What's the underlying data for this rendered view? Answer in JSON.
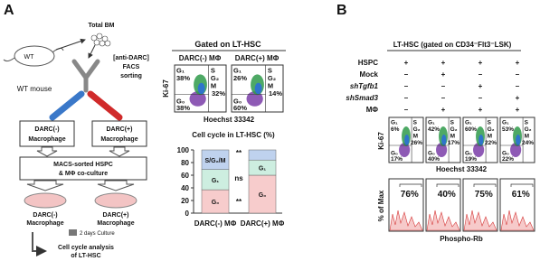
{
  "gate_labels": {
    "g1": "G₁",
    "s": "S",
    "g2": "G₂",
    "m": "M",
    "g0": "G₀"
  },
  "panel_a": {
    "label": "A",
    "mouse": "WT",
    "mouse_caption": "WT mouse",
    "source": "Total BM",
    "sorting": [
      "[anti-DARC]",
      "FACS",
      "sorting"
    ],
    "sorted": [
      {
        "line1": "DARC(-)",
        "line2": "Macrophage"
      },
      {
        "line1": "DARC(+)",
        "line2": "Macrophage"
      }
    ],
    "coculture": [
      "MACS-sorted HSPC",
      "& MΦ co-culture"
    ],
    "dishes": [
      {
        "line1": "DARC(-)",
        "line2": "Macrophage"
      },
      {
        "line1": "DARC(+)",
        "line2": "Macrophage"
      }
    ],
    "culture_time": "2 days Culture",
    "analysis": [
      "Cell cycle analysis",
      "of LT-HSC"
    ],
    "flow": {
      "title": "Gated on LT-HSC",
      "y_label": "Ki-67",
      "x_label": "Hoechst 33342",
      "plots": [
        {
          "title": "DARC(-) MΦ",
          "g1": "38%",
          "sg2m": "32%",
          "g0": "38%"
        },
        {
          "title": "DARC(+) MΦ",
          "g1": "26%",
          "sg2m": "14%",
          "g0": "60%"
        }
      ]
    }
  },
  "chart_data": {
    "type": "bar",
    "stacked": true,
    "title": "Cell cycle in LT-HSC (%)",
    "categories": [
      "DARC(-) MΦ",
      "DARC(+) MΦ"
    ],
    "series": [
      {
        "name": "G₀",
        "color": "#f7cccc",
        "values": [
          37,
          60
        ]
      },
      {
        "name": "G₁",
        "color": "#cdeee0",
        "values": [
          32,
          24
        ]
      },
      {
        "name": "S/G₂/M",
        "color": "#bfd2ee",
        "values": [
          31,
          16
        ]
      }
    ],
    "ylim": [
      0,
      100
    ],
    "yticks": [
      0,
      20,
      40,
      60,
      80,
      100
    ],
    "annotations": [
      "**",
      "ns",
      "**"
    ]
  },
  "panel_b": {
    "label": "B",
    "title": "LT-HSC (gated on CD34⁻Flt3⁻LSK)",
    "conditions": [
      {
        "name": "HSPC",
        "marks": [
          "+",
          "+",
          "+",
          "+"
        ]
      },
      {
        "name": "Mock",
        "marks": [
          "–",
          "+",
          "–",
          "–"
        ]
      },
      {
        "name": "shTgfb1",
        "marks": [
          "–",
          "–",
          "+",
          "–"
        ]
      },
      {
        "name": "shSmad3",
        "marks": [
          "–",
          "–",
          "–",
          "+"
        ]
      },
      {
        "name": "MΦ",
        "marks": [
          "–",
          "+",
          "+",
          "+"
        ]
      }
    ],
    "flow": {
      "y_label": "Ki-67",
      "x_label": "Hoechst 33342",
      "plots": [
        {
          "g1": "6%",
          "sg2m": "26%",
          "g0": "17%"
        },
        {
          "g1": "42%",
          "sg2m": "17%",
          "g0": "40%"
        },
        {
          "g1": "60%",
          "sg2m": "22%",
          "g0": "19%"
        },
        {
          "g1": "53%",
          "sg2m": "24%",
          "g0": "22%"
        }
      ]
    },
    "histogram": {
      "y_label": "% of Max",
      "x_label": "Phospho-Rb",
      "values": [
        "76%",
        "40%",
        "75%",
        "61%"
      ]
    }
  }
}
